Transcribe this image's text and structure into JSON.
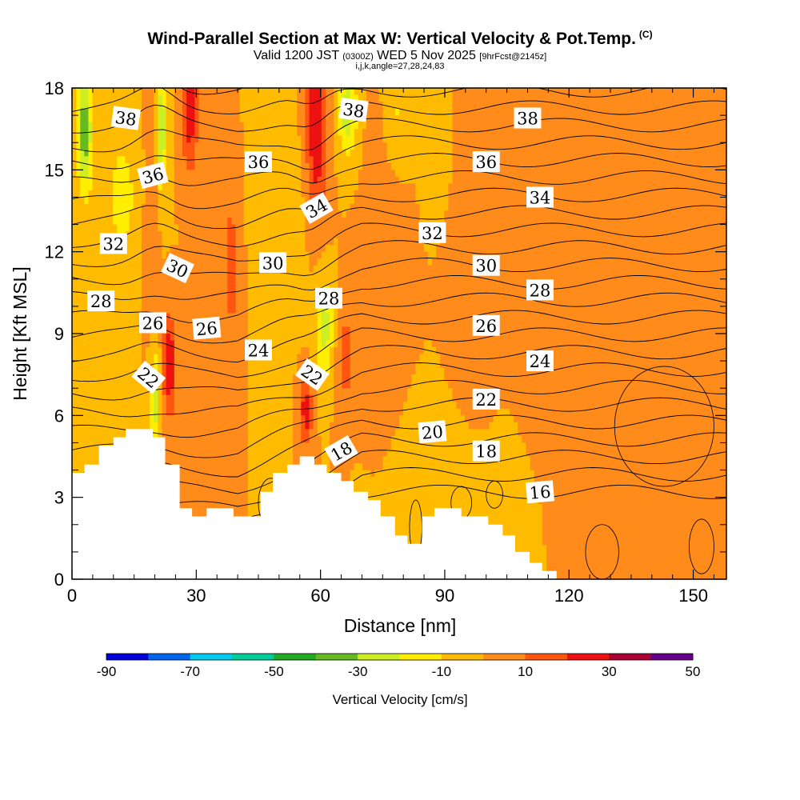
{
  "header": {
    "title": "Wind-Parallel Section at Max W: Vertical Velocity & Pot.Temp.",
    "copyright": "(C)",
    "valid_prefix": "Valid 1200 JST",
    "valid_utc": "(0300Z)",
    "valid_date": "WED 5 Nov 2025",
    "forecast_info": "[9hrFcst@2145z]",
    "indices": "i,j,k,angle=27,28,24,83"
  },
  "chart_data": {
    "type": "contour",
    "xlabel": "Distance [nm]",
    "ylabel": "Height [Kft MSL]",
    "xlim": [
      0,
      158
    ],
    "ylim": [
      0,
      18
    ],
    "x_ticks": [
      "0",
      "30",
      "60",
      "90",
      "120",
      "150"
    ],
    "y_ticks": [
      "0",
      "3",
      "6",
      "9",
      "12",
      "15",
      "18"
    ],
    "colorbar": {
      "label": "Vertical Velocity [cm/s]",
      "tick_labels": [
        "-90",
        "-70",
        "-50",
        "-30",
        "-10",
        "10",
        "30",
        "50"
      ],
      "colors": [
        "#0000dd",
        "#0066ee",
        "#00ccee",
        "#00cc99",
        "#22aa22",
        "#66bb22",
        "#ccee22",
        "#ffee00",
        "#ffbb00",
        "#ff8c1a",
        "#ff5511",
        "#ee1111",
        "#aa0033",
        "#660088"
      ]
    },
    "isentrope_labels": [
      {
        "text": "38",
        "x": 13,
        "y": 16.9,
        "r": 8
      },
      {
        "text": "36",
        "x": 19.5,
        "y": 14.8,
        "r": -15
      },
      {
        "text": "32",
        "x": 10,
        "y": 12.3,
        "r": 0
      },
      {
        "text": "30",
        "x": 25.5,
        "y": 11.4,
        "r": 25
      },
      {
        "text": "28",
        "x": 7,
        "y": 10.2,
        "r": 0
      },
      {
        "text": "26",
        "x": 19.5,
        "y": 9.4,
        "r": 0
      },
      {
        "text": "22",
        "x": 18.5,
        "y": 7.4,
        "r": 40
      },
      {
        "text": "26",
        "x": 32.5,
        "y": 9.2,
        "r": -5
      },
      {
        "text": "24",
        "x": 45,
        "y": 8.4,
        "r": 0
      },
      {
        "text": "36",
        "x": 45,
        "y": 15.3,
        "r": 0
      },
      {
        "text": "30",
        "x": 48.5,
        "y": 11.6,
        "r": 0
      },
      {
        "text": "38",
        "x": 68,
        "y": 17.2,
        "r": 8
      },
      {
        "text": "34",
        "x": 59,
        "y": 13.6,
        "r": -30
      },
      {
        "text": "28",
        "x": 62,
        "y": 10.3,
        "r": 0
      },
      {
        "text": "22",
        "x": 58,
        "y": 7.5,
        "r": 35
      },
      {
        "text": "18",
        "x": 65,
        "y": 4.7,
        "r": -30
      },
      {
        "text": "32",
        "x": 87,
        "y": 12.7,
        "r": 0
      },
      {
        "text": "20",
        "x": 87,
        "y": 5.4,
        "r": -5
      },
      {
        "text": "38",
        "x": 110,
        "y": 16.9,
        "r": 0
      },
      {
        "text": "36",
        "x": 100,
        "y": 15.3,
        "r": 0
      },
      {
        "text": "34",
        "x": 113,
        "y": 14.0,
        "r": 0
      },
      {
        "text": "30",
        "x": 100,
        "y": 11.5,
        "r": 0
      },
      {
        "text": "28",
        "x": 113,
        "y": 10.6,
        "r": 0
      },
      {
        "text": "26",
        "x": 100,
        "y": 9.3,
        "r": 0
      },
      {
        "text": "24",
        "x": 113,
        "y": 8.0,
        "r": 0
      },
      {
        "text": "22",
        "x": 100,
        "y": 6.6,
        "r": 0
      },
      {
        "text": "18",
        "x": 100,
        "y": 4.7,
        "r": 0
      },
      {
        "text": "16",
        "x": 113,
        "y": 3.2,
        "r": -5
      }
    ],
    "terrain": [
      [
        0,
        3.9
      ],
      [
        3,
        3.9
      ],
      [
        3,
        4.2
      ],
      [
        6.5,
        4.2
      ],
      [
        6.5,
        4.9
      ],
      [
        10,
        4.9
      ],
      [
        10,
        5.2
      ],
      [
        13,
        5.2
      ],
      [
        13,
        5.5
      ],
      [
        19.5,
        5.5
      ],
      [
        19.5,
        5.2
      ],
      [
        22.5,
        5.2
      ],
      [
        22.5,
        4.2
      ],
      [
        26,
        4.2
      ],
      [
        26,
        2.6
      ],
      [
        29,
        2.6
      ],
      [
        29,
        2.3
      ],
      [
        32.5,
        2.3
      ],
      [
        32.5,
        2.6
      ],
      [
        39,
        2.6
      ],
      [
        39,
        2.3
      ],
      [
        45.5,
        2.3
      ],
      [
        45.5,
        3.2
      ],
      [
        48.5,
        3.2
      ],
      [
        48.5,
        3.9
      ],
      [
        52,
        3.9
      ],
      [
        52,
        4.2
      ],
      [
        55,
        4.2
      ],
      [
        55,
        4.5
      ],
      [
        58.5,
        4.5
      ],
      [
        58.5,
        4.2
      ],
      [
        61.5,
        4.2
      ],
      [
        61.5,
        3.9
      ],
      [
        65,
        3.9
      ],
      [
        65,
        3.6
      ],
      [
        68,
        3.6
      ],
      [
        68,
        3.2
      ],
      [
        71.5,
        3.2
      ],
      [
        71.5,
        2.9
      ],
      [
        74.5,
        2.9
      ],
      [
        74.5,
        2.3
      ],
      [
        78,
        2.3
      ],
      [
        78,
        1.6
      ],
      [
        81,
        1.6
      ],
      [
        81,
        1.3
      ],
      [
        84.5,
        1.3
      ],
      [
        84.5,
        2.3
      ],
      [
        87.5,
        2.3
      ],
      [
        87.5,
        2.6
      ],
      [
        94,
        2.6
      ],
      [
        94,
        2.3
      ],
      [
        100.5,
        2.3
      ],
      [
        100.5,
        2.0
      ],
      [
        104,
        2.0
      ],
      [
        104,
        1.6
      ],
      [
        107,
        1.6
      ],
      [
        107,
        1.0
      ],
      [
        110.5,
        1.0
      ],
      [
        110.5,
        0.6
      ],
      [
        113.5,
        0.6
      ],
      [
        113.5,
        0.3
      ],
      [
        117,
        0.3
      ],
      [
        117,
        0.0
      ],
      [
        158,
        0.0
      ]
    ]
  }
}
